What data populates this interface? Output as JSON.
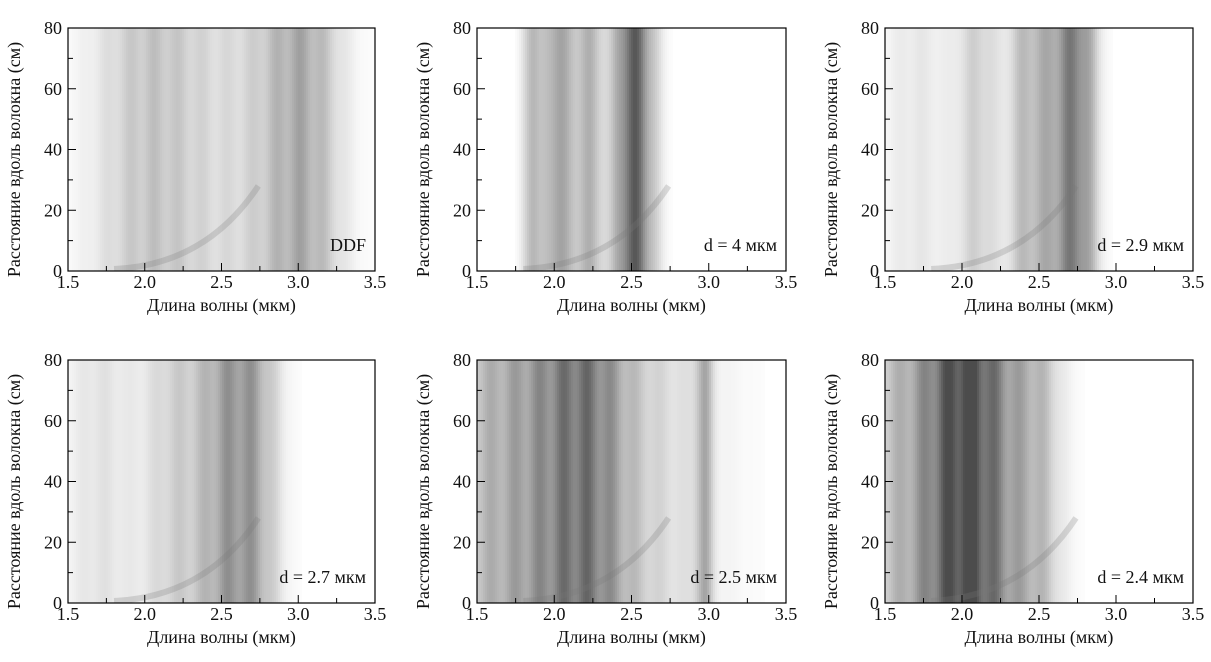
{
  "chart_data": [
    {
      "type": "heatmap",
      "annotation": "DDF",
      "xlabel": "Длина волны (мкм)",
      "ylabel": "Расстояние вдоль волокна (см)",
      "xlim": [
        1.5,
        3.5
      ],
      "ylim": [
        0,
        80
      ],
      "xticks": [
        1.5,
        {
          "value": 2,
          "label": "2.0"
        },
        2.5,
        {
          "value": 3,
          "label": "3.0"
        },
        3.5
      ],
      "xminorticks": [
        1.75,
        2.25,
        2.75,
        3.25
      ],
      "yticks": [
        0,
        20,
        40,
        60,
        80
      ],
      "yminorticks": [
        10,
        30,
        50,
        70
      ]
    },
    {
      "type": "heatmap",
      "annotation": "d = 4 мкм",
      "xlabel": "Длина волны (мкм)",
      "ylabel": "Расстояние вдоль волокна (см)",
      "xlim": [
        1.5,
        3.5
      ],
      "ylim": [
        0,
        80
      ],
      "xticks": [
        1.5,
        {
          "value": 2,
          "label": "2.0"
        },
        2.5,
        {
          "value": 3,
          "label": "3.0"
        },
        3.5
      ],
      "xminorticks": [
        1.75,
        2.25,
        2.75,
        3.25
      ],
      "yticks": [
        0,
        20,
        40,
        60,
        80
      ],
      "yminorticks": [
        10,
        30,
        50,
        70
      ]
    },
    {
      "type": "heatmap",
      "annotation": "d = 2.9 мкм",
      "xlabel": "Длина волны (мкм)",
      "ylabel": "Расстояние вдоль волокна (см)",
      "xlim": [
        1.5,
        3.5
      ],
      "ylim": [
        0,
        80
      ],
      "xticks": [
        1.5,
        {
          "value": 2,
          "label": "2.0"
        },
        2.5,
        {
          "value": 3,
          "label": "3.0"
        },
        3.5
      ],
      "xminorticks": [
        1.75,
        2.25,
        2.75,
        3.25
      ],
      "yticks": [
        0,
        20,
        40,
        60,
        80
      ],
      "yminorticks": [
        10,
        30,
        50,
        70
      ]
    },
    {
      "type": "heatmap",
      "annotation": "d = 2.7 мкм",
      "xlabel": "Длина волны (мкм)",
      "ylabel": "Расстояние вдоль волокна (см)",
      "xlim": [
        1.5,
        3.5
      ],
      "ylim": [
        0,
        80
      ],
      "xticks": [
        1.5,
        {
          "value": 2,
          "label": "2.0"
        },
        2.5,
        {
          "value": 3,
          "label": "3.0"
        },
        3.5
      ],
      "xminorticks": [
        1.75,
        2.25,
        2.75,
        3.25
      ],
      "yticks": [
        0,
        20,
        40,
        60,
        80
      ],
      "yminorticks": [
        10,
        30,
        50,
        70
      ]
    },
    {
      "type": "heatmap",
      "annotation": "d = 2.5 мкм",
      "xlabel": "Длина волны (мкм)",
      "ylabel": "Расстояние вдоль волокна (см)",
      "xlim": [
        1.5,
        3.5
      ],
      "ylim": [
        0,
        80
      ],
      "xticks": [
        1.5,
        {
          "value": 2,
          "label": "2.0"
        },
        2.5,
        {
          "value": 3,
          "label": "3.0"
        },
        3.5
      ],
      "xminorticks": [
        1.75,
        2.25,
        2.75,
        3.25
      ],
      "yticks": [
        0,
        20,
        40,
        60,
        80
      ],
      "yminorticks": [
        10,
        30,
        50,
        70
      ]
    },
    {
      "type": "heatmap",
      "annotation": "d = 2.4 мкм",
      "xlabel": "Длина волны (мкм)",
      "ylabel": "Расстояние вдоль волокна (см)",
      "xlim": [
        1.5,
        3.5
      ],
      "ylim": [
        0,
        80
      ],
      "xticks": [
        1.5,
        {
          "value": 2,
          "label": "2.0"
        },
        2.5,
        {
          "value": 3,
          "label": "3.0"
        },
        3.5
      ],
      "xminorticks": [
        1.75,
        2.25,
        2.75,
        3.25
      ],
      "yticks": [
        0,
        20,
        40,
        60,
        80
      ],
      "yminorticks": [
        10,
        30,
        50,
        70
      ]
    }
  ]
}
